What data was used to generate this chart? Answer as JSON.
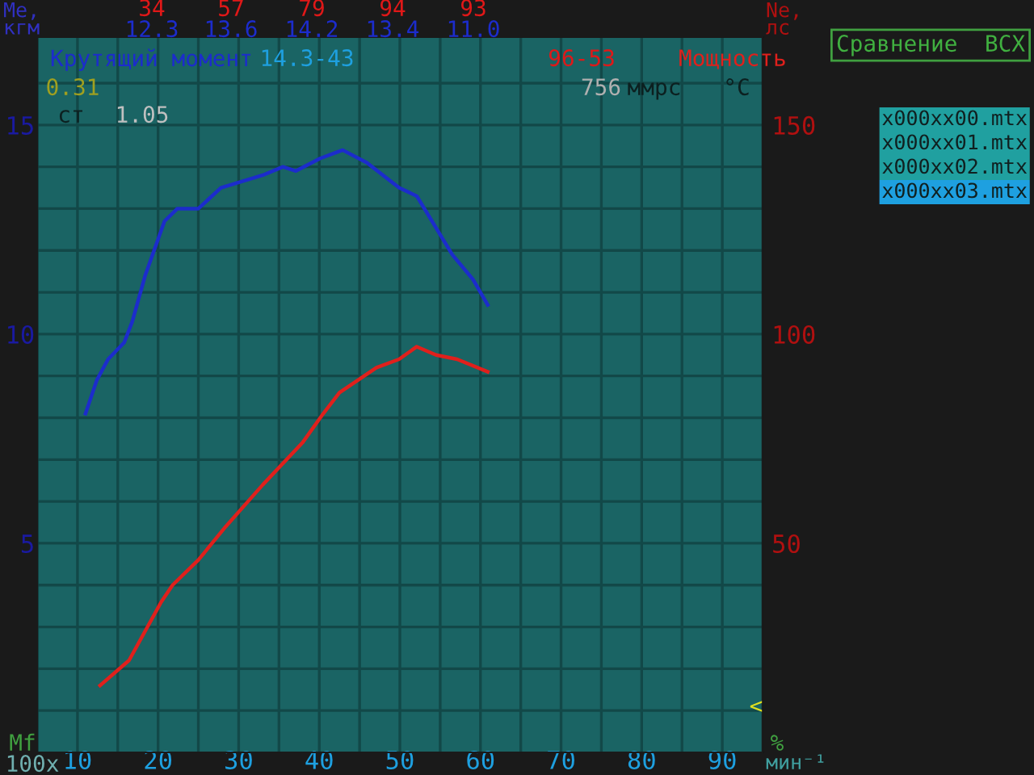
{
  "chart_data": {
    "type": "line",
    "ylabel": "Me,\nкгм",
    "y2label": "Ne,\nлс",
    "xlabel": "мин⁻¹",
    "x": [
      11.0,
      12.4,
      13.8,
      15.8,
      16.8,
      18.4,
      20.8,
      22.4,
      25.0,
      27.8,
      33.0,
      35.5,
      37.1,
      40.1,
      42.9,
      45.9,
      49.9,
      52.1,
      56.5,
      59.1,
      60.9
    ],
    "series": [
      {
        "name": "Крутящий момент",
        "color": "#1c2ccc",
        "values": [
          8.1,
          8.9,
          9.4,
          9.8,
          10.3,
          11.4,
          12.7,
          13.0,
          13.0,
          13.5,
          13.8,
          14.0,
          13.9,
          14.2,
          14.4,
          14.1,
          13.5,
          13.3,
          11.9,
          11.3,
          10.7
        ]
      },
      {
        "name": "Мощность",
        "color": "#e0201c",
        "axis": "y2",
        "x": [
          12.8,
          16.4,
          20.4,
          21.8,
          25.0,
          28.4,
          33.0,
          37.9,
          40.5,
          42.5,
          47.1,
          49.9,
          52.1,
          54.5,
          57.1,
          60.9
        ],
        "values": [
          16,
          22,
          36,
          40,
          46,
          54,
          64,
          74,
          81,
          86,
          92,
          94,
          97,
          95,
          94,
          91
        ]
      }
    ],
    "xlim": [
      5,
      95
    ],
    "xticks": [
      {
        "value": 5,
        "label": null
      },
      10,
      {
        "value": 15,
        "label": null
      },
      20,
      {
        "value": 25,
        "label": null
      },
      30,
      {
        "value": 35,
        "label": null
      },
      40,
      {
        "value": 45,
        "label": null
      },
      50,
      {
        "value": 55,
        "label": null
      },
      60,
      {
        "value": 65,
        "label": null
      },
      70,
      {
        "value": 75,
        "label": null
      },
      80,
      {
        "value": 85,
        "label": null
      },
      90
    ],
    "ylim": [
      0,
      17.1
    ],
    "yticks": [
      {
        "value": 1,
        "label": null
      },
      {
        "value": 2,
        "label": null
      },
      {
        "value": 3,
        "label": null
      },
      {
        "value": 4,
        "label": null
      },
      5,
      {
        "value": 6,
        "label": null
      },
      {
        "value": 7,
        "label": null
      },
      {
        "value": 8,
        "label": null
      },
      {
        "value": 9,
        "label": null
      },
      10,
      {
        "value": 11,
        "label": null
      },
      {
        "value": 12,
        "label": null
      },
      {
        "value": 13,
        "label": null
      },
      {
        "value": 14,
        "label": null
      },
      15,
      {
        "value": 16,
        "label": null
      }
    ],
    "y2lim": [
      0,
      171
    ],
    "y2ticks": [
      50,
      100,
      150
    ],
    "grid": true,
    "legend": false,
    "marker": "none",
    "line_style": "solid",
    "annotations": [
      "34",
      "57",
      "79",
      "94",
      "93",
      "12.3",
      "13.6",
      "14.2",
      "13.4",
      "11.0",
      "14.3-43",
      "96-53",
      "0.31",
      "ст",
      "1.05",
      "756",
      "ммрс",
      "°С",
      "Mf",
      "100x",
      "%",
      "Сравнение  ВСХ",
      "x000xx00.mtx",
      "x000xx01.mtx",
      "x000xx02.mtx",
      "x000xx03.mtx",
      "<"
    ]
  }
}
